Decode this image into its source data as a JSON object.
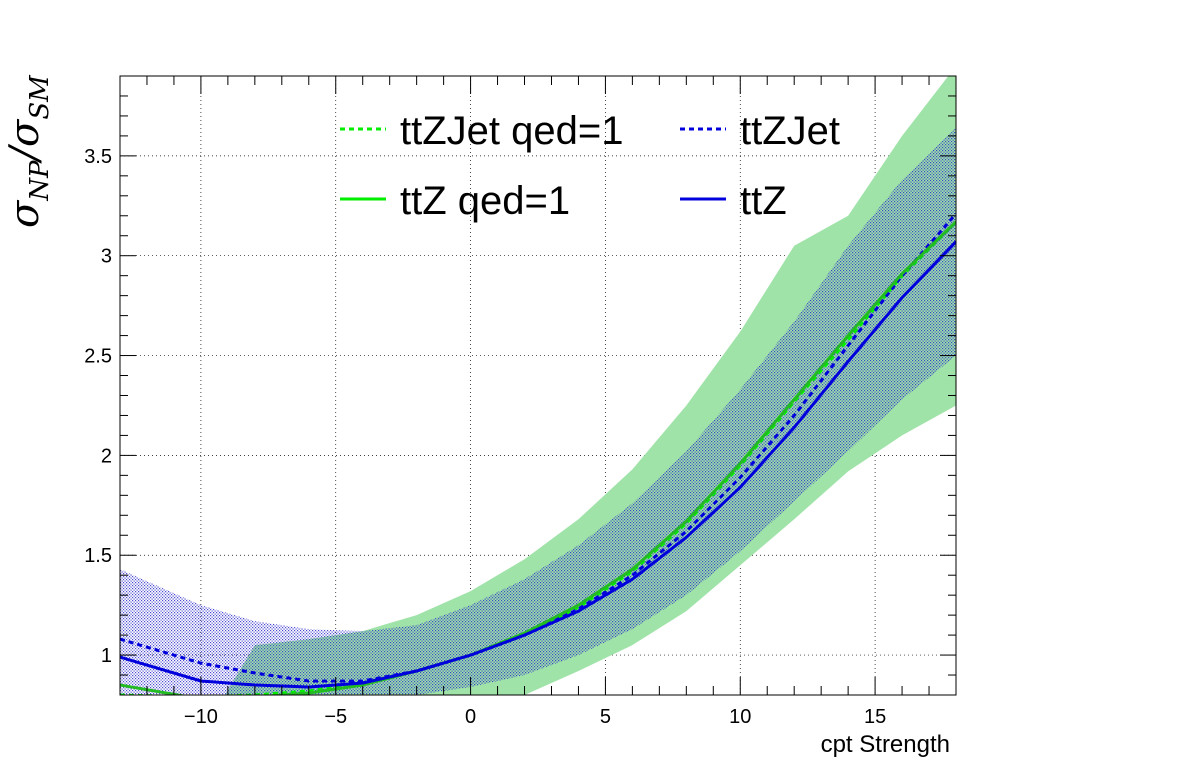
{
  "chart_data": {
    "type": "line",
    "xlabel": "cpt Strength",
    "ylabel": {
      "sym": "σ",
      "num_sub": "NP",
      "slash": "/",
      "den_sub": "SM"
    },
    "xlim": [
      -13,
      18
    ],
    "ylim": [
      0.8,
      3.9
    ],
    "x_ticks": [
      -10,
      -5,
      0,
      5,
      10,
      15
    ],
    "x_tick_labels": [
      "−10",
      "−5",
      "0",
      "5",
      "10",
      "15"
    ],
    "y_ticks": [
      1,
      1.5,
      2,
      2.5,
      3,
      3.5
    ],
    "y_tick_labels": [
      "1",
      "1.5",
      "2",
      "2.5",
      "3",
      "3.5"
    ],
    "grid": true,
    "legend_position": "top",
    "colors": {
      "green": "#00ee00",
      "green_line": "#22bb22",
      "blue": "#0000dd",
      "green_band": "#9fe3a8",
      "blue_band": "#5555cc"
    },
    "x": [
      -13,
      -10,
      -8,
      -6,
      -4,
      -2,
      0,
      2,
      4,
      6,
      8,
      10,
      12,
      14,
      16,
      18
    ],
    "series": [
      {
        "name": "ttZJet qed=1",
        "style": "dotted",
        "color": "#00ee00",
        "values": [
          0.8,
          0.79,
          0.8,
          0.82,
          0.86,
          0.92,
          1.0,
          1.1,
          1.24,
          1.42,
          1.66,
          1.95,
          2.27,
          2.58,
          2.9,
          3.17
        ]
      },
      {
        "name": "ttZJet",
        "style": "dotted",
        "color": "#0000dd",
        "values": [
          1.08,
          0.96,
          0.91,
          0.87,
          0.87,
          0.92,
          1.0,
          1.1,
          1.23,
          1.4,
          1.62,
          1.89,
          2.2,
          2.55,
          2.9,
          3.21
        ]
      },
      {
        "name": "ttZ qed=1",
        "style": "solid",
        "color": "#22bb22",
        "values": [
          0.85,
          0.78,
          0.79,
          0.81,
          0.85,
          0.92,
          1.0,
          1.11,
          1.25,
          1.43,
          1.67,
          1.96,
          2.28,
          2.6,
          2.91,
          3.17
        ]
      },
      {
        "name": "ttZ",
        "style": "solid",
        "color": "#0000dd",
        "values": [
          0.99,
          0.87,
          0.85,
          0.84,
          0.86,
          0.92,
          1.0,
          1.1,
          1.22,
          1.38,
          1.59,
          1.84,
          2.14,
          2.47,
          2.79,
          3.07
        ]
      }
    ],
    "bands": [
      {
        "name": "ttZ qed=1 band",
        "color": "#9fe3a8",
        "upper": [
          null,
          null,
          1.05,
          1.08,
          1.12,
          1.2,
          1.32,
          1.48,
          1.68,
          1.93,
          2.25,
          2.62,
          3.05,
          3.2,
          3.6,
          3.95
        ],
        "lower": [
          null,
          null,
          null,
          null,
          null,
          0.78,
          0.78,
          0.8,
          0.92,
          1.05,
          1.22,
          1.45,
          1.68,
          1.92,
          2.1,
          2.25
        ]
      },
      {
        "name": "ttZ band",
        "color": "#5555cc",
        "upper": [
          1.43,
          1.25,
          1.17,
          1.13,
          1.12,
          1.15,
          1.25,
          1.38,
          1.55,
          1.76,
          2.02,
          2.33,
          2.67,
          3.05,
          3.38,
          3.64
        ],
        "lower": [
          0.8,
          0.8,
          0.8,
          0.8,
          0.8,
          0.8,
          0.84,
          0.9,
          1.0,
          1.13,
          1.3,
          1.52,
          1.77,
          2.02,
          2.28,
          2.5
        ]
      }
    ],
    "legend": [
      {
        "label": "ttZJet qed=1",
        "style": "dotted",
        "color": "#00ee00"
      },
      {
        "label": "ttZJet",
        "style": "dotted",
        "color": "#0000dd"
      },
      {
        "label": "ttZ qed=1",
        "style": "solid",
        "color": "#00ee00"
      },
      {
        "label": "ttZ",
        "style": "solid",
        "color": "#0000dd"
      }
    ]
  }
}
